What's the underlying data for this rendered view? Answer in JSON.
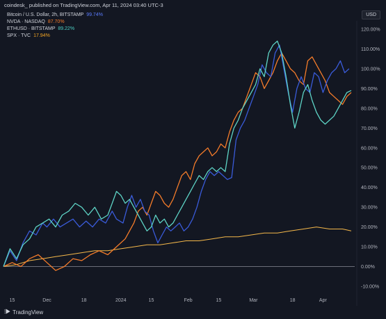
{
  "header": {
    "text": "coindesk_ published on TradingView.com, Apr 11, 2024 03:40 UTC-3"
  },
  "legend": [
    {
      "name": "Bitcoin / U.S. Dollar, 2h, BITSTAMP",
      "value": "99.74%",
      "color": "#2962ff"
    },
    {
      "name": "NVDA · NASDAQ",
      "value": "87.70%",
      "color": "#f57c2a"
    },
    {
      "name": "ETHUSD · BITSTAMP",
      "value": "89.22%",
      "color": "#4dd0c4"
    },
    {
      "name": "SPX · TVC",
      "value": "17.94%",
      "color": "#f5a623"
    }
  ],
  "currency_button": "USD",
  "footer": {
    "brand": "TradingView"
  },
  "colors": {
    "background": "#131722",
    "zero_line": "#787b86",
    "btc": "#3a5bd9",
    "nvda": "#f57c2a",
    "eth": "#5ed4c6",
    "spx": "#f5b84a"
  },
  "chart_data": {
    "type": "line",
    "y_unit": "%",
    "ylim": [
      -10,
      120
    ],
    "y_ticks": [
      "120.00%",
      "110.00%",
      "100.00%",
      "90.00%",
      "80.00%",
      "70.00%",
      "60.00%",
      "50.00%",
      "40.00%",
      "30.00%",
      "20.00%",
      "10.00%",
      "0.00%",
      "-10.00%"
    ],
    "x_ticks": [
      "15",
      "Dec",
      "18",
      "2024",
      "15",
      "Feb",
      "15",
      "Mar",
      "18",
      "Apr"
    ],
    "x_tick_days": [
      4,
      20,
      37,
      54,
      68,
      85,
      99,
      115,
      133,
      147
    ],
    "x_range": [
      0,
      160
    ],
    "series": [
      {
        "name": "Bitcoin / U.S. Dollar, 2h, BITSTAMP",
        "key": "btc",
        "points": [
          [
            0,
            0
          ],
          [
            3,
            8
          ],
          [
            6,
            3
          ],
          [
            9,
            12
          ],
          [
            12,
            18
          ],
          [
            15,
            16
          ],
          [
            18,
            22
          ],
          [
            20,
            20
          ],
          [
            23,
            24
          ],
          [
            26,
            20
          ],
          [
            29,
            22
          ],
          [
            32,
            24
          ],
          [
            35,
            20
          ],
          [
            38,
            23
          ],
          [
            41,
            20
          ],
          [
            44,
            24
          ],
          [
            47,
            22
          ],
          [
            50,
            28
          ],
          [
            52,
            24
          ],
          [
            55,
            22
          ],
          [
            57,
            30
          ],
          [
            59,
            36
          ],
          [
            61,
            30
          ],
          [
            63,
            34
          ],
          [
            65,
            28
          ],
          [
            67,
            26
          ],
          [
            69,
            18
          ],
          [
            71,
            12
          ],
          [
            73,
            16
          ],
          [
            75,
            20
          ],
          [
            77,
            18
          ],
          [
            79,
            20
          ],
          [
            81,
            22
          ],
          [
            83,
            18
          ],
          [
            85,
            20
          ],
          [
            87,
            24
          ],
          [
            89,
            30
          ],
          [
            91,
            38
          ],
          [
            93,
            44
          ],
          [
            95,
            48
          ],
          [
            97,
            46
          ],
          [
            99,
            48
          ],
          [
            101,
            46
          ],
          [
            103,
            44
          ],
          [
            105,
            45
          ],
          [
            107,
            64
          ],
          [
            109,
            70
          ],
          [
            111,
            74
          ],
          [
            113,
            80
          ],
          [
            115,
            86
          ],
          [
            117,
            92
          ],
          [
            119,
            102
          ],
          [
            121,
            98
          ],
          [
            123,
            96
          ],
          [
            125,
            108
          ],
          [
            127,
            112
          ],
          [
            129,
            100
          ],
          [
            131,
            88
          ],
          [
            133,
            78
          ],
          [
            135,
            90
          ],
          [
            137,
            96
          ],
          [
            139,
            90
          ],
          [
            141,
            88
          ],
          [
            143,
            98
          ],
          [
            145,
            96
          ],
          [
            147,
            88
          ],
          [
            149,
            94
          ],
          [
            151,
            98
          ],
          [
            153,
            100
          ],
          [
            155,
            104
          ],
          [
            157,
            98
          ],
          [
            159,
            100
          ]
        ]
      },
      {
        "name": "NVDA · NASDAQ",
        "key": "nvda",
        "points": [
          [
            0,
            0
          ],
          [
            4,
            2
          ],
          [
            8,
            0
          ],
          [
            12,
            4
          ],
          [
            16,
            6
          ],
          [
            20,
            2
          ],
          [
            24,
            -2
          ],
          [
            28,
            0
          ],
          [
            32,
            4
          ],
          [
            36,
            3
          ],
          [
            40,
            6
          ],
          [
            44,
            8
          ],
          [
            48,
            6
          ],
          [
            52,
            10
          ],
          [
            56,
            14
          ],
          [
            60,
            22
          ],
          [
            62,
            28
          ],
          [
            64,
            30
          ],
          [
            66,
            26
          ],
          [
            68,
            32
          ],
          [
            70,
            38
          ],
          [
            72,
            36
          ],
          [
            74,
            32
          ],
          [
            76,
            30
          ],
          [
            78,
            34
          ],
          [
            80,
            40
          ],
          [
            82,
            46
          ],
          [
            84,
            48
          ],
          [
            86,
            44
          ],
          [
            88,
            52
          ],
          [
            90,
            56
          ],
          [
            92,
            58
          ],
          [
            94,
            60
          ],
          [
            96,
            56
          ],
          [
            98,
            58
          ],
          [
            100,
            62
          ],
          [
            102,
            60
          ],
          [
            104,
            68
          ],
          [
            106,
            74
          ],
          [
            108,
            78
          ],
          [
            110,
            80
          ],
          [
            112,
            86
          ],
          [
            114,
            92
          ],
          [
            116,
            98
          ],
          [
            118,
            96
          ],
          [
            120,
            90
          ],
          [
            122,
            94
          ],
          [
            124,
            98
          ],
          [
            126,
            104
          ],
          [
            128,
            108
          ],
          [
            130,
            104
          ],
          [
            132,
            100
          ],
          [
            134,
            98
          ],
          [
            136,
            94
          ],
          [
            138,
            92
          ],
          [
            140,
            104
          ],
          [
            142,
            106
          ],
          [
            144,
            102
          ],
          [
            146,
            98
          ],
          [
            148,
            94
          ],
          [
            150,
            88
          ],
          [
            152,
            86
          ],
          [
            154,
            84
          ],
          [
            156,
            82
          ],
          [
            158,
            86
          ],
          [
            160,
            88
          ]
        ]
      },
      {
        "name": "ETHUSD · BITSTAMP",
        "key": "eth",
        "points": [
          [
            0,
            0
          ],
          [
            3,
            9
          ],
          [
            6,
            4
          ],
          [
            9,
            11
          ],
          [
            12,
            14
          ],
          [
            15,
            20
          ],
          [
            18,
            22
          ],
          [
            21,
            24
          ],
          [
            24,
            20
          ],
          [
            27,
            26
          ],
          [
            30,
            28
          ],
          [
            33,
            32
          ],
          [
            36,
            30
          ],
          [
            39,
            26
          ],
          [
            42,
            30
          ],
          [
            45,
            24
          ],
          [
            48,
            26
          ],
          [
            50,
            32
          ],
          [
            52,
            38
          ],
          [
            54,
            36
          ],
          [
            56,
            32
          ],
          [
            58,
            34
          ],
          [
            60,
            30
          ],
          [
            62,
            26
          ],
          [
            64,
            22
          ],
          [
            66,
            18
          ],
          [
            68,
            20
          ],
          [
            70,
            26
          ],
          [
            72,
            22
          ],
          [
            74,
            24
          ],
          [
            76,
            20
          ],
          [
            78,
            22
          ],
          [
            80,
            26
          ],
          [
            82,
            30
          ],
          [
            84,
            34
          ],
          [
            86,
            38
          ],
          [
            88,
            42
          ],
          [
            90,
            46
          ],
          [
            92,
            44
          ],
          [
            94,
            48
          ],
          [
            96,
            50
          ],
          [
            98,
            48
          ],
          [
            100,
            50
          ],
          [
            102,
            48
          ],
          [
            104,
            62
          ],
          [
            106,
            70
          ],
          [
            108,
            74
          ],
          [
            110,
            80
          ],
          [
            112,
            84
          ],
          [
            114,
            88
          ],
          [
            116,
            92
          ],
          [
            118,
            100
          ],
          [
            120,
            96
          ],
          [
            122,
            108
          ],
          [
            124,
            112
          ],
          [
            126,
            114
          ],
          [
            128,
            108
          ],
          [
            130,
            96
          ],
          [
            132,
            82
          ],
          [
            134,
            70
          ],
          [
            136,
            78
          ],
          [
            138,
            88
          ],
          [
            140,
            92
          ],
          [
            142,
            84
          ],
          [
            144,
            78
          ],
          [
            146,
            74
          ],
          [
            148,
            72
          ],
          [
            150,
            74
          ],
          [
            152,
            76
          ],
          [
            154,
            80
          ],
          [
            156,
            84
          ],
          [
            158,
            88
          ],
          [
            160,
            89
          ]
        ]
      },
      {
        "name": "SPX · TVC",
        "key": "spx",
        "points": [
          [
            0,
            0
          ],
          [
            6,
            1
          ],
          [
            12,
            3
          ],
          [
            18,
            4
          ],
          [
            24,
            5
          ],
          [
            30,
            6
          ],
          [
            36,
            7
          ],
          [
            42,
            8
          ],
          [
            48,
            8
          ],
          [
            54,
            9
          ],
          [
            60,
            10
          ],
          [
            66,
            11
          ],
          [
            72,
            11
          ],
          [
            78,
            12
          ],
          [
            84,
            13
          ],
          [
            90,
            13
          ],
          [
            96,
            14
          ],
          [
            102,
            15
          ],
          [
            108,
            15
          ],
          [
            114,
            16
          ],
          [
            120,
            17
          ],
          [
            126,
            17
          ],
          [
            132,
            18
          ],
          [
            138,
            19
          ],
          [
            144,
            20
          ],
          [
            150,
            19
          ],
          [
            156,
            19
          ],
          [
            160,
            18
          ]
        ]
      }
    ]
  }
}
